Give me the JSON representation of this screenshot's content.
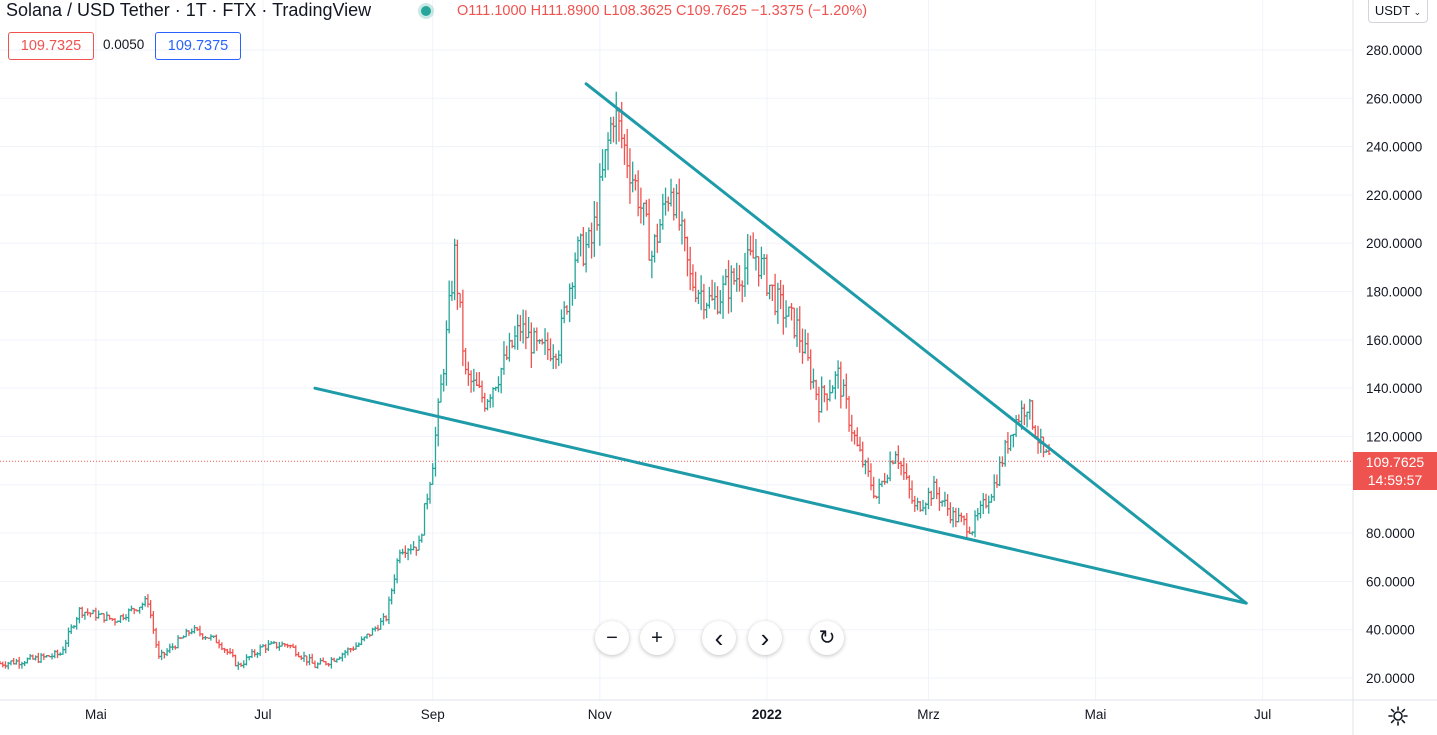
{
  "header": {
    "symbol": "Solana / USD Tether · 1T · FTX · TradingView",
    "ohlc": "O111.1000  H111.8900  L108.3625  C109.7625  −1.3375 (−1.20%)",
    "bid": "109.7325",
    "spread": "0.0050",
    "ask": "109.7375",
    "currency": "USDT"
  },
  "price_tag": {
    "price": "109.7625",
    "countdown": "14:59:57"
  },
  "colors": {
    "up": "#26a69a",
    "down": "#ef5350",
    "trendline": "#1e9ba8",
    "grid": "#f0f3fa"
  },
  "nav_buttons": [
    {
      "name": "zoom-out-button",
      "icon": "minus-icon",
      "glyph": "−"
    },
    {
      "name": "zoom-in-button",
      "icon": "plus-icon",
      "glyph": "+"
    },
    {
      "name": "scroll-left-button",
      "icon": "chevron-left-icon",
      "glyph": "‹"
    },
    {
      "name": "scroll-right-button",
      "icon": "chevron-right-icon",
      "glyph": "›"
    },
    {
      "name": "reset-button",
      "icon": "reset-icon",
      "glyph": "↻"
    }
  ],
  "chart_data": {
    "type": "ohlc",
    "ylim": [
      15,
      290
    ],
    "y_ticks": [
      "20.0000",
      "40.0000",
      "60.0000",
      "80.0000",
      "100.0000",
      "120.0000",
      "140.0000",
      "160.0000",
      "180.0000",
      "200.0000",
      "220.0000",
      "240.0000",
      "260.0000",
      "280.0000"
    ],
    "y_tick_values": [
      20,
      40,
      60,
      80,
      100,
      120,
      140,
      160,
      180,
      200,
      220,
      240,
      260,
      280
    ],
    "x_ticks": [
      "Mai",
      "Jul",
      "Sep",
      "Nov",
      "2022",
      "Mrz",
      "Mai",
      "Jul"
    ],
    "x_tick_dates": [
      "2021-05-01",
      "2021-07-01",
      "2021-09-01",
      "2021-11-01",
      "2022-01-01",
      "2022-03-01",
      "2022-05-01",
      "2022-07-01"
    ],
    "x_range": [
      "2021-03-27",
      "2022-08-03"
    ],
    "current_price": 109.7625,
    "trendlines": [
      {
        "from": [
          "2021-10-27",
          266
        ],
        "to": [
          "2022-06-25",
          51
        ]
      },
      {
        "from": [
          "2021-07-20",
          140
        ],
        "to": [
          "2022-06-25",
          51
        ]
      }
    ],
    "price_path": [
      [
        "2021-03-27",
        26
      ],
      [
        "2021-04-10",
        28
      ],
      [
        "2021-04-18",
        30
      ],
      [
        "2021-04-25",
        48
      ],
      [
        "2021-05-08",
        44
      ],
      [
        "2021-05-20",
        52
      ],
      [
        "2021-05-24",
        28
      ],
      [
        "2021-06-05",
        40
      ],
      [
        "2021-06-15",
        35
      ],
      [
        "2021-06-22",
        25
      ],
      [
        "2021-07-01",
        33
      ],
      [
        "2021-07-10",
        34
      ],
      [
        "2021-07-20",
        25
      ],
      [
        "2021-07-25",
        27
      ],
      [
        "2021-08-05",
        34
      ],
      [
        "2021-08-15",
        45
      ],
      [
        "2021-08-20",
        74
      ],
      [
        "2021-08-27",
        75
      ],
      [
        "2021-09-01",
        110
      ],
      [
        "2021-09-05",
        150
      ],
      [
        "2021-09-09",
        195
      ],
      [
        "2021-09-13",
        145
      ],
      [
        "2021-09-20",
        135
      ],
      [
        "2021-09-27",
        150
      ],
      [
        "2021-10-03",
        165
      ],
      [
        "2021-10-10",
        155
      ],
      [
        "2021-10-17",
        158
      ],
      [
        "2021-10-23",
        195
      ],
      [
        "2021-10-29",
        200
      ],
      [
        "2021-11-06",
        255
      ],
      [
        "2021-11-15",
        220
      ],
      [
        "2021-11-20",
        195
      ],
      [
        "2021-11-27",
        225
      ],
      [
        "2021-12-04",
        185
      ],
      [
        "2021-12-12",
        175
      ],
      [
        "2021-12-20",
        185
      ],
      [
        "2021-12-28",
        195
      ],
      [
        "2022-01-05",
        175
      ],
      [
        "2022-01-12",
        165
      ],
      [
        "2022-01-20",
        135
      ],
      [
        "2022-01-27",
        145
      ],
      [
        "2022-02-03",
        115
      ],
      [
        "2022-02-10",
        95
      ],
      [
        "2022-02-17",
        115
      ],
      [
        "2022-02-24",
        90
      ],
      [
        "2022-03-03",
        98
      ],
      [
        "2022-03-10",
        87
      ],
      [
        "2022-03-17",
        82
      ],
      [
        "2022-03-25",
        100
      ],
      [
        "2022-04-01",
        125
      ],
      [
        "2022-04-06",
        134
      ],
      [
        "2022-04-12",
        112
      ],
      [
        "2022-04-15",
        110
      ]
    ]
  }
}
